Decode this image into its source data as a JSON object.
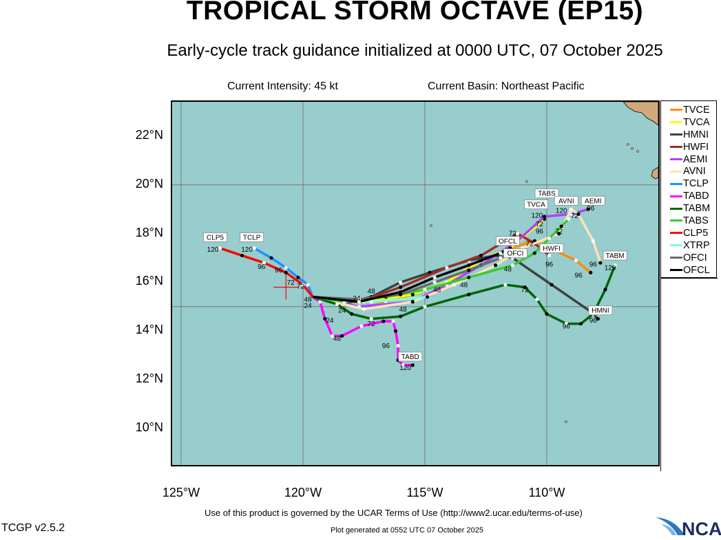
{
  "header": {
    "title": "TROPICAL STORM OCTAVE (EP15)",
    "subtitle": "Early-cycle track guidance initialized at 0000 UTC, 07 October 2025",
    "intensity": "Current Intensity: 45 kt",
    "basin": "Current Basin: Northeast Pacific"
  },
  "axes": {
    "lat_labels": [
      {
        "lat": 22,
        "text": "22°N"
      },
      {
        "lat": 20,
        "text": "20°N"
      },
      {
        "lat": 18,
        "text": "18°N"
      },
      {
        "lat": 16,
        "text": "16°N"
      },
      {
        "lat": 14,
        "text": "14°N"
      },
      {
        "lat": 12,
        "text": "12°N"
      },
      {
        "lat": 10,
        "text": "10°N"
      }
    ],
    "lon_labels": [
      {
        "lon": 125,
        "text": "125°W"
      },
      {
        "lon": 120,
        "text": "120°W"
      },
      {
        "lon": 115,
        "text": "115°W"
      },
      {
        "lon": 110,
        "text": "110°W"
      }
    ],
    "grid_lon": [
      125,
      120,
      115,
      110
    ],
    "grid_lat": [
      20,
      15
    ],
    "lon_range_W": [
      125.4,
      105.4
    ],
    "lat_range_N": [
      8.5,
      23.5
    ]
  },
  "colors": {
    "ocean": "#97cdcd",
    "land": "#d2a97c"
  },
  "current_position": {
    "lon": 120.7,
    "lat": 15.8
  },
  "chart_data": {
    "type": "line",
    "title": "TROPICAL STORM OCTAVE (EP15)",
    "legend_position": "right",
    "series": [
      {
        "name": "TVCE",
        "color": "#ff8c00",
        "track": [
          [
            119.6,
            15.4
          ],
          [
            118.6,
            15.2
          ],
          [
            117.5,
            15.2
          ],
          [
            116.6,
            15.2
          ],
          [
            115.5,
            15.5
          ],
          [
            114.1,
            16.0
          ],
          [
            112.7,
            16.9
          ],
          [
            111.5,
            17.4
          ],
          [
            110.5,
            17.7
          ],
          [
            108.8,
            16.9
          ],
          [
            108.2,
            16.4
          ]
        ]
      },
      {
        "name": "TVCA",
        "color": "#ffff00",
        "track": [
          [
            119.6,
            15.4
          ],
          [
            117.5,
            15.2
          ],
          [
            115.5,
            15.5
          ],
          [
            114.1,
            16.0
          ],
          [
            112.7,
            16.9
          ],
          [
            111.5,
            17.4
          ],
          [
            110.1,
            18.6
          ]
        ]
      },
      {
        "name": "HMNI",
        "color": "#404040",
        "track": [
          [
            119.6,
            15.4
          ],
          [
            118.4,
            15.1
          ],
          [
            117.2,
            15.4
          ],
          [
            116.0,
            16.0
          ],
          [
            114.8,
            16.4
          ],
          [
            113.2,
            16.9
          ],
          [
            112.1,
            17.1
          ],
          [
            111.4,
            17.0
          ],
          [
            109.8,
            15.9
          ],
          [
            108.2,
            14.8
          ],
          [
            107.9,
            14.5
          ]
        ]
      },
      {
        "name": "HWFI",
        "color": "#a52a2a",
        "track": [
          [
            119.6,
            15.4
          ],
          [
            117.7,
            15.2
          ],
          [
            116.0,
            15.8
          ],
          [
            114.1,
            16.6
          ],
          [
            112.7,
            17.1
          ],
          [
            111.2,
            18.0
          ],
          [
            110.5,
            17.6
          ],
          [
            109.9,
            17.1
          ]
        ]
      },
      {
        "name": "AEMI",
        "color": "#b040ff",
        "track": [
          [
            119.6,
            15.4
          ],
          [
            117.7,
            15.0
          ],
          [
            115.5,
            15.2
          ],
          [
            114.1,
            15.9
          ],
          [
            112.7,
            16.7
          ],
          [
            111.2,
            17.7
          ],
          [
            110.1,
            18.7
          ],
          [
            109.0,
            18.8
          ],
          [
            108.3,
            19.0
          ]
        ]
      },
      {
        "name": "AVNI",
        "color": "#ffe4b5",
        "track": [
          [
            119.6,
            15.4
          ],
          [
            117.5,
            14.9
          ],
          [
            115.5,
            15.2
          ],
          [
            113.8,
            15.9
          ],
          [
            112.1,
            16.7
          ],
          [
            111.0,
            17.4
          ],
          [
            109.5,
            18.0
          ],
          [
            109.0,
            19.0
          ],
          [
            108.7,
            18.8
          ],
          [
            108.1,
            17.7
          ],
          [
            107.8,
            16.8
          ]
        ]
      },
      {
        "name": "TCLP",
        "color": "#1e90ff",
        "track": [
          [
            119.6,
            15.4
          ],
          [
            119.8,
            15.9
          ],
          [
            120.2,
            16.2
          ],
          [
            120.7,
            16.6
          ],
          [
            121.3,
            17.0
          ],
          [
            122.0,
            17.4
          ]
        ]
      },
      {
        "name": "TABD",
        "color": "#ff00ff",
        "track": [
          [
            119.6,
            15.4
          ],
          [
            119.3,
            15.2
          ],
          [
            119.1,
            14.5
          ],
          [
            118.8,
            13.8
          ],
          [
            118.4,
            13.8
          ],
          [
            117.6,
            14.2
          ],
          [
            116.7,
            14.4
          ],
          [
            116.3,
            14.4
          ],
          [
            116.2,
            14.0
          ],
          [
            116.1,
            13.4
          ],
          [
            116.1,
            12.8
          ],
          [
            115.9,
            12.6
          ],
          [
            115.5,
            12.6
          ]
        ]
      },
      {
        "name": "TABM",
        "color": "#006400",
        "track": [
          [
            119.6,
            15.4
          ],
          [
            118.6,
            15.1
          ],
          [
            118.0,
            14.7
          ],
          [
            117.2,
            14.5
          ],
          [
            116.0,
            14.6
          ],
          [
            115.0,
            15.0
          ],
          [
            113.2,
            15.5
          ],
          [
            111.7,
            15.9
          ],
          [
            110.9,
            15.8
          ],
          [
            110.4,
            15.3
          ],
          [
            110.0,
            14.7
          ],
          [
            109.2,
            14.3
          ],
          [
            108.6,
            14.3
          ],
          [
            108.1,
            14.7
          ],
          [
            107.6,
            15.7
          ],
          [
            107.2,
            16.7
          ]
        ]
      },
      {
        "name": "TABS",
        "color": "#32cd32",
        "track": [
          [
            119.6,
            15.4
          ],
          [
            118.3,
            15.2
          ],
          [
            116.6,
            15.4
          ],
          [
            115.0,
            15.7
          ],
          [
            113.2,
            16.2
          ],
          [
            111.4,
            16.7
          ],
          [
            110.5,
            17.2
          ],
          [
            109.9,
            17.8
          ],
          [
            109.4,
            18.3
          ],
          [
            109.1,
            18.6
          ]
        ]
      },
      {
        "name": "CLP5",
        "color": "#ff0000",
        "track": [
          [
            119.6,
            15.4
          ],
          [
            120.0,
            15.9
          ],
          [
            120.7,
            16.4
          ],
          [
            121.6,
            16.8
          ],
          [
            122.5,
            17.1
          ],
          [
            123.4,
            17.4
          ]
        ]
      },
      {
        "name": "XTRP",
        "color": "#7fffd4",
        "track": [
          [
            119.6,
            15.4
          ],
          [
            117.2,
            15.2
          ],
          [
            114.9,
            15.4
          ]
        ]
      },
      {
        "name": "OFCI",
        "color": "#696969",
        "track": [
          [
            119.6,
            15.4
          ],
          [
            117.7,
            15.3
          ],
          [
            116.0,
            15.5
          ],
          [
            114.6,
            16.0
          ],
          [
            113.2,
            16.5
          ],
          [
            111.9,
            17.0
          ],
          [
            111.5,
            17.2
          ]
        ]
      },
      {
        "name": "OFCL",
        "color": "#000000",
        "track": [
          [
            119.6,
            15.4
          ],
          [
            117.7,
            15.2
          ],
          [
            116.0,
            15.6
          ],
          [
            114.6,
            16.2
          ],
          [
            113.2,
            16.7
          ],
          [
            111.9,
            17.2
          ],
          [
            111.5,
            17.4
          ]
        ]
      }
    ],
    "hour_labels": [
      {
        "text": "120",
        "lon": 123.7,
        "lat": 17.25
      },
      {
        "text": "120",
        "lon": 122.3,
        "lat": 17.25
      },
      {
        "text": "96",
        "lon": 121.7,
        "lat": 16.55
      },
      {
        "text": "96",
        "lon": 121.0,
        "lat": 16.4
      },
      {
        "text": "72",
        "lon": 120.5,
        "lat": 15.9
      },
      {
        "text": "72",
        "lon": 120.1,
        "lat": 15.75
      },
      {
        "text": "48",
        "lon": 119.8,
        "lat": 15.2
      },
      {
        "text": "24",
        "lon": 119.8,
        "lat": 14.95
      },
      {
        "text": "24",
        "lon": 118.9,
        "lat": 14.35
      },
      {
        "text": "24",
        "lon": 118.4,
        "lat": 14.75
      },
      {
        "text": "24",
        "lon": 117.8,
        "lat": 15.25
      },
      {
        "text": "48",
        "lon": 118.6,
        "lat": 13.6
      },
      {
        "text": "72",
        "lon": 117.2,
        "lat": 14.2
      },
      {
        "text": "96",
        "lon": 116.6,
        "lat": 13.3
      },
      {
        "text": "120",
        "lon": 115.8,
        "lat": 12.4
      },
      {
        "text": "48",
        "lon": 117.2,
        "lat": 15.55
      },
      {
        "text": "48",
        "lon": 115.9,
        "lat": 14.8
      },
      {
        "text": "48",
        "lon": 114.5,
        "lat": 15.6
      },
      {
        "text": "48",
        "lon": 113.4,
        "lat": 15.8
      },
      {
        "text": "48",
        "lon": 111.6,
        "lat": 16.45
      },
      {
        "text": "72",
        "lon": 110.9,
        "lat": 15.6
      },
      {
        "text": "72",
        "lon": 111.4,
        "lat": 17.8
      },
      {
        "text": "72",
        "lon": 110.7,
        "lat": 17.5
      },
      {
        "text": "72",
        "lon": 110.3,
        "lat": 18.3
      },
      {
        "text": "72",
        "lon": 109.5,
        "lat": 18.0
      },
      {
        "text": "72",
        "lon": 109.0,
        "lat": 18.7
      },
      {
        "text": "96",
        "lon": 110.3,
        "lat": 18.0
      },
      {
        "text": "96",
        "lon": 109.9,
        "lat": 16.65
      },
      {
        "text": "96",
        "lon": 108.7,
        "lat": 16.2
      },
      {
        "text": "96",
        "lon": 108.1,
        "lat": 16.65
      },
      {
        "text": "96",
        "lon": 108.2,
        "lat": 18.95
      },
      {
        "text": "96",
        "lon": 109.2,
        "lat": 14.1
      },
      {
        "text": "96",
        "lon": 108.1,
        "lat": 14.35
      },
      {
        "text": "120",
        "lon": 110.4,
        "lat": 18.65
      },
      {
        "text": "120",
        "lon": 109.4,
        "lat": 18.85
      },
      {
        "text": "120",
        "lon": 107.4,
        "lat": 16.5
      }
    ],
    "end_labels": [
      {
        "text": "CLP5",
        "lon": 123.6,
        "lat": 17.75
      },
      {
        "text": "TCLP",
        "lon": 122.1,
        "lat": 17.75
      },
      {
        "text": "TABD",
        "lon": 115.6,
        "lat": 12.85
      },
      {
        "text": "TABM",
        "lon": 107.2,
        "lat": 17.0
      },
      {
        "text": "HMNI",
        "lon": 107.8,
        "lat": 14.75
      },
      {
        "text": "HWFI",
        "lon": 109.8,
        "lat": 17.3
      },
      {
        "text": "OFCL",
        "lon": 111.6,
        "lat": 17.6
      },
      {
        "text": "OFCI",
        "lon": 111.4,
        "lat": 17.35
      },
      {
        "text": "TABS",
        "lon": 110.0,
        "lat": 19.55
      },
      {
        "text": "TVCA",
        "lon": 110.1,
        "lat": 19.1
      },
      {
        "text": "AVNI",
        "lon": 109.2,
        "lat": 19.25
      },
      {
        "text": "AEMI",
        "lon": 108.1,
        "lat": 19.25
      }
    ]
  },
  "footer": {
    "terms": "Use of this product is governed by the UCAR Terms of Use (http://www2.ucar.edu/terms-of-use)",
    "version": "TCGP v2.5.2",
    "generated": "Plot generated at 0552 UTC   07 October 2025",
    "logo_text": "NCAR"
  }
}
